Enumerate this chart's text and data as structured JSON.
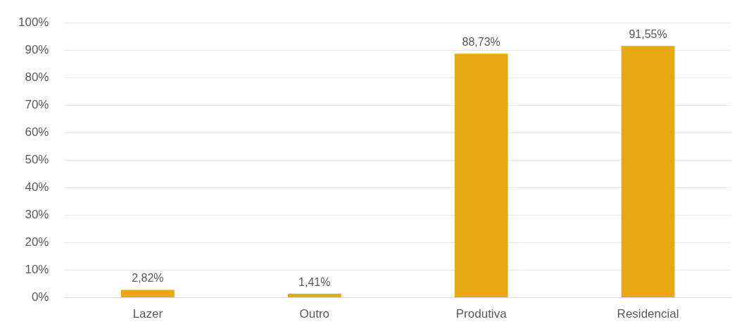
{
  "chart_data": {
    "type": "bar",
    "categories": [
      "Lazer",
      "Outro",
      "Produtiva",
      "Residencial"
    ],
    "values": [
      2.82,
      1.41,
      88.73,
      91.55
    ],
    "value_labels": [
      "2,82%",
      "1,41%",
      "88,73%",
      "91,55%"
    ],
    "color": "#e5a913",
    "ylim": [
      0,
      100
    ],
    "yticks": [
      {
        "value": 0,
        "label": "0%"
      },
      {
        "value": 10,
        "label": "10%"
      },
      {
        "value": 20,
        "label": "20%"
      },
      {
        "value": 30,
        "label": "30%"
      },
      {
        "value": 40,
        "label": "40%"
      },
      {
        "value": 50,
        "label": "50%"
      },
      {
        "value": 60,
        "label": "60%"
      },
      {
        "value": 70,
        "label": "70%"
      },
      {
        "value": 80,
        "label": "80%"
      },
      {
        "value": 90,
        "label": "90%"
      },
      {
        "value": 100,
        "label": "100%"
      }
    ],
    "grid": "y",
    "legend": false
  }
}
